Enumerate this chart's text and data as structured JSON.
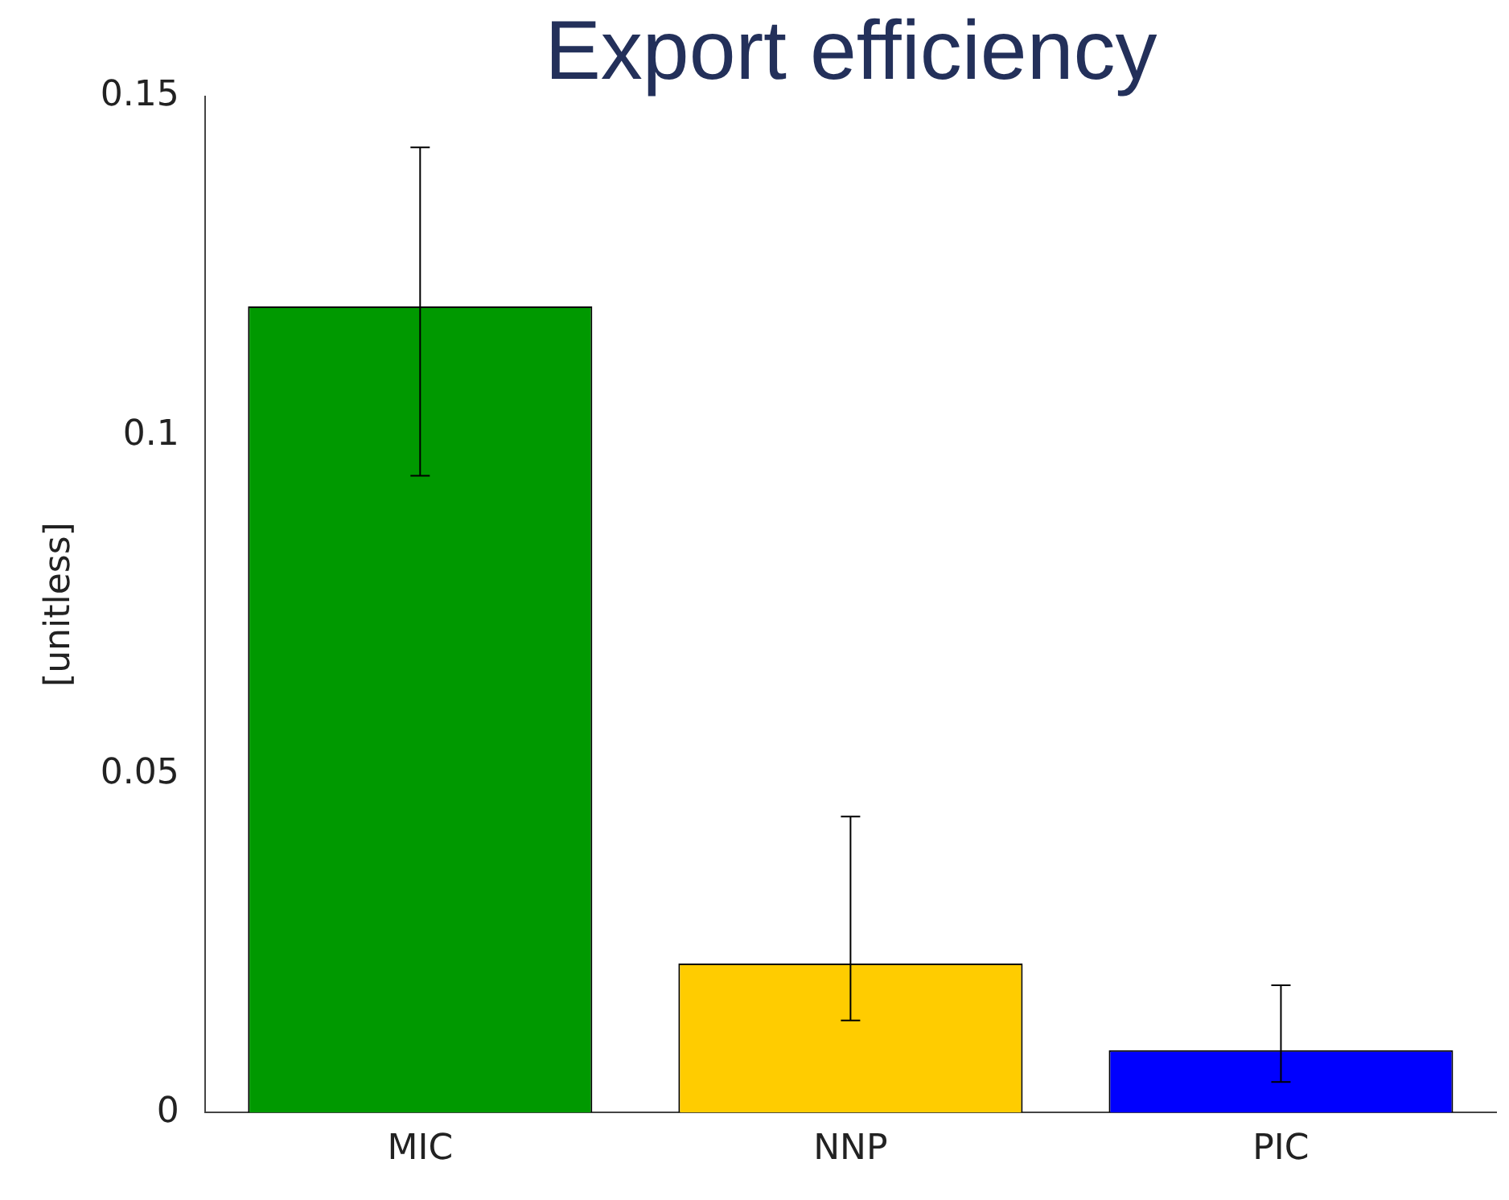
{
  "chart_data": {
    "type": "bar",
    "title": "Export efficiency",
    "ylabel": "[unitless]",
    "categories": [
      "MIC",
      "NNP",
      "PIC"
    ],
    "values": [
      0.119,
      0.022,
      0.0092
    ],
    "errors": [
      [
        0.094,
        0.1425
      ],
      [
        0.0136,
        0.0437
      ],
      [
        0.0045,
        0.0188
      ]
    ],
    "colors": [
      "#009900",
      "#ffcc00",
      "#0000ff"
    ],
    "ylim": [
      0,
      0.15
    ],
    "yticks": [
      0,
      0.05,
      0.1,
      0.15
    ],
    "grid": false,
    "legend": false
  }
}
